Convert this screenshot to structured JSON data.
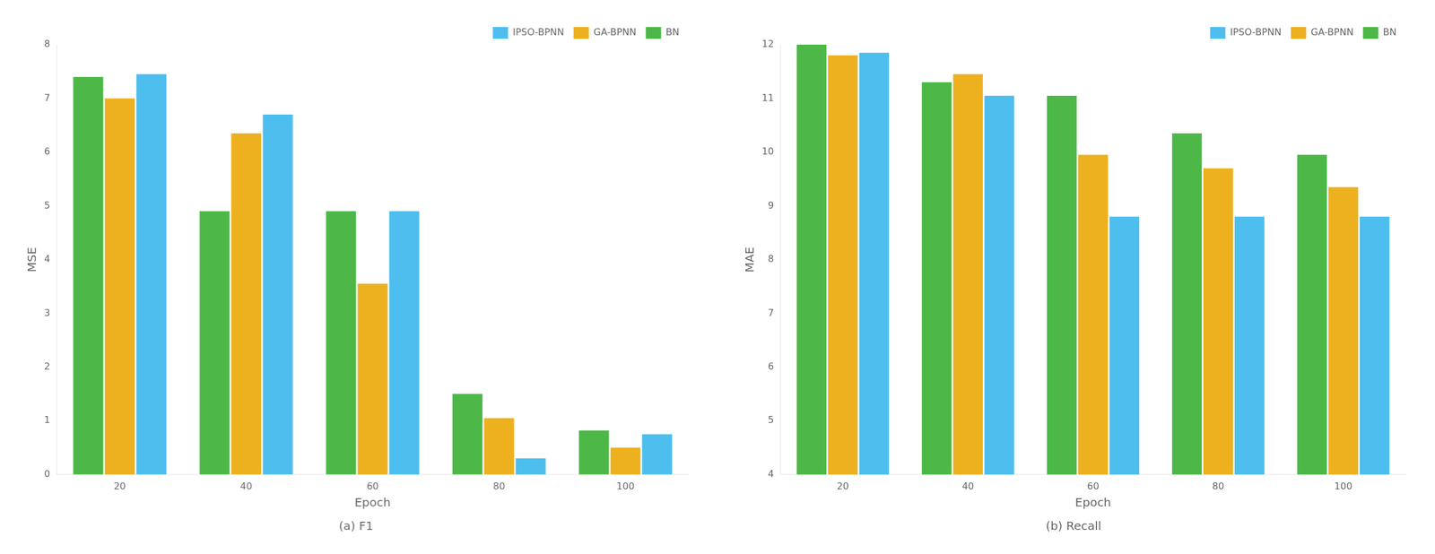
{
  "chart_data": [
    {
      "type": "bar",
      "title": "(a) F1",
      "xlabel": "Epoch",
      "ylabel": "MSE",
      "categories": [
        20,
        40,
        60,
        80,
        100
      ],
      "series": [
        {
          "name": "BN",
          "color": "#4DB848",
          "values": [
            7.4,
            4.9,
            4.9,
            1.5,
            0.82
          ]
        },
        {
          "name": "GA-BPNN",
          "color": "#EDB120",
          "values": [
            7.0,
            6.35,
            3.55,
            1.05,
            0.5
          ]
        },
        {
          "name": "IPSO-BPNN",
          "color": "#4DBEEE",
          "values": [
            7.45,
            6.7,
            4.9,
            0.3,
            0.75
          ]
        }
      ],
      "ylim": [
        0,
        8
      ],
      "yticks": [
        0,
        1,
        2,
        3,
        4,
        5,
        6,
        7,
        8
      ],
      "grid": false,
      "legend": "upper right"
    },
    {
      "type": "bar",
      "title": "(b) Recall",
      "xlabel": "Epoch",
      "ylabel": "MAE",
      "categories": [
        20,
        40,
        60,
        80,
        100
      ],
      "series": [
        {
          "name": "BN",
          "color": "#4DB848",
          "values": [
            12.0,
            11.3,
            11.05,
            10.35,
            9.95
          ]
        },
        {
          "name": "GA-BPNN",
          "color": "#EDB120",
          "values": [
            11.8,
            11.45,
            9.95,
            9.7,
            9.35
          ]
        },
        {
          "name": "IPSO-BPNN",
          "color": "#4DBEEE",
          "values": [
            11.85,
            11.05,
            8.8,
            8.8,
            8.8
          ]
        }
      ],
      "ylim": [
        4,
        12
      ],
      "yticks": [
        4,
        5,
        6,
        7,
        8,
        9,
        10,
        11,
        12
      ],
      "grid": false,
      "legend": "upper right"
    }
  ]
}
